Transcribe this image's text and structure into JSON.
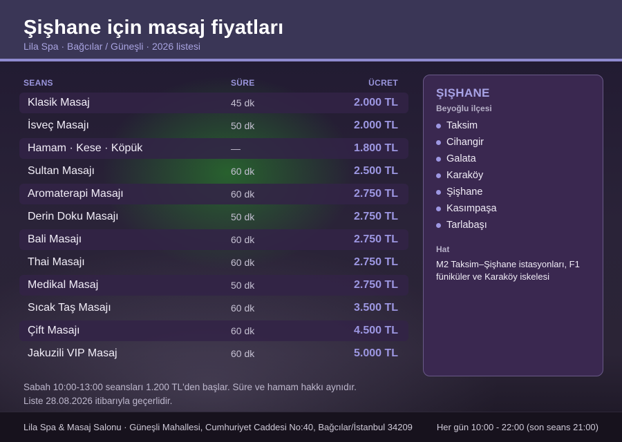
{
  "header": {
    "title": "Şişhane için masaj fiyatları",
    "subtitle": "Lila Spa · Bağcılar / Güneşli · 2026 listesi"
  },
  "table": {
    "headers": {
      "name": "SEANS",
      "duration": "SÜRE",
      "price": "ÜCRET"
    },
    "rows": [
      {
        "name": "Klasik Masaj",
        "duration": "45 dk",
        "price": "2.000 TL"
      },
      {
        "name": "İsveç Masajı",
        "duration": "50 dk",
        "price": "2.000 TL"
      },
      {
        "name": "Hamam · Kese · Köpük",
        "duration": "—",
        "price": "1.800 TL"
      },
      {
        "name": "Sultan Masajı",
        "duration": "60 dk",
        "price": "2.500 TL"
      },
      {
        "name": "Aromaterapi Masajı",
        "duration": "60 dk",
        "price": "2.750 TL"
      },
      {
        "name": "Derin Doku Masajı",
        "duration": "50 dk",
        "price": "2.750 TL"
      },
      {
        "name": "Bali Masajı",
        "duration": "60 dk",
        "price": "2.750 TL"
      },
      {
        "name": "Thai Masajı",
        "duration": "60 dk",
        "price": "2.750 TL"
      },
      {
        "name": "Medikal Masaj",
        "duration": "50 dk",
        "price": "2.750 TL"
      },
      {
        "name": "Sıcak Taş Masajı",
        "duration": "60 dk",
        "price": "3.500 TL"
      },
      {
        "name": "Çift Masajı",
        "duration": "60 dk",
        "price": "4.500 TL"
      },
      {
        "name": "Jakuzili VIP Masaj",
        "duration": "60 dk",
        "price": "5.000 TL"
      }
    ]
  },
  "notes": {
    "line1": "Sabah 10:00-13:00 seansları 1.200 TL'den başlar. Süre ve hamam hakkı aynıdır.",
    "line2": "Liste 28.08.2026 itibarıyla geçerlidir."
  },
  "panel": {
    "title": "ŞIŞHANE",
    "district": "Beyoğlu ilçesi",
    "neighborhoods": [
      "Taksim",
      "Cihangir",
      "Galata",
      "Karaköy",
      "Şişhane",
      "Kasımpaşa",
      "Tarlabaşı"
    ],
    "transit_label": "Hat",
    "transit_text": "M2 Taksim–Şişhane istasyonları, F1 füniküler ve Karaköy iskelesi"
  },
  "footer": {
    "address": "Lila Spa & Masaj Salonu · Güneşli Mahallesi, Cumhuriyet Caddesi No:40, Bağcılar/İstanbul 34209",
    "hours": "Her gün 10:00 - 22:00 (son seans 21:00)"
  },
  "colors": {
    "accent": "#9d97e2",
    "header_bg": "#3a3656",
    "panel_bg": "#3a2850",
    "footer_bg": "#17121d"
  }
}
